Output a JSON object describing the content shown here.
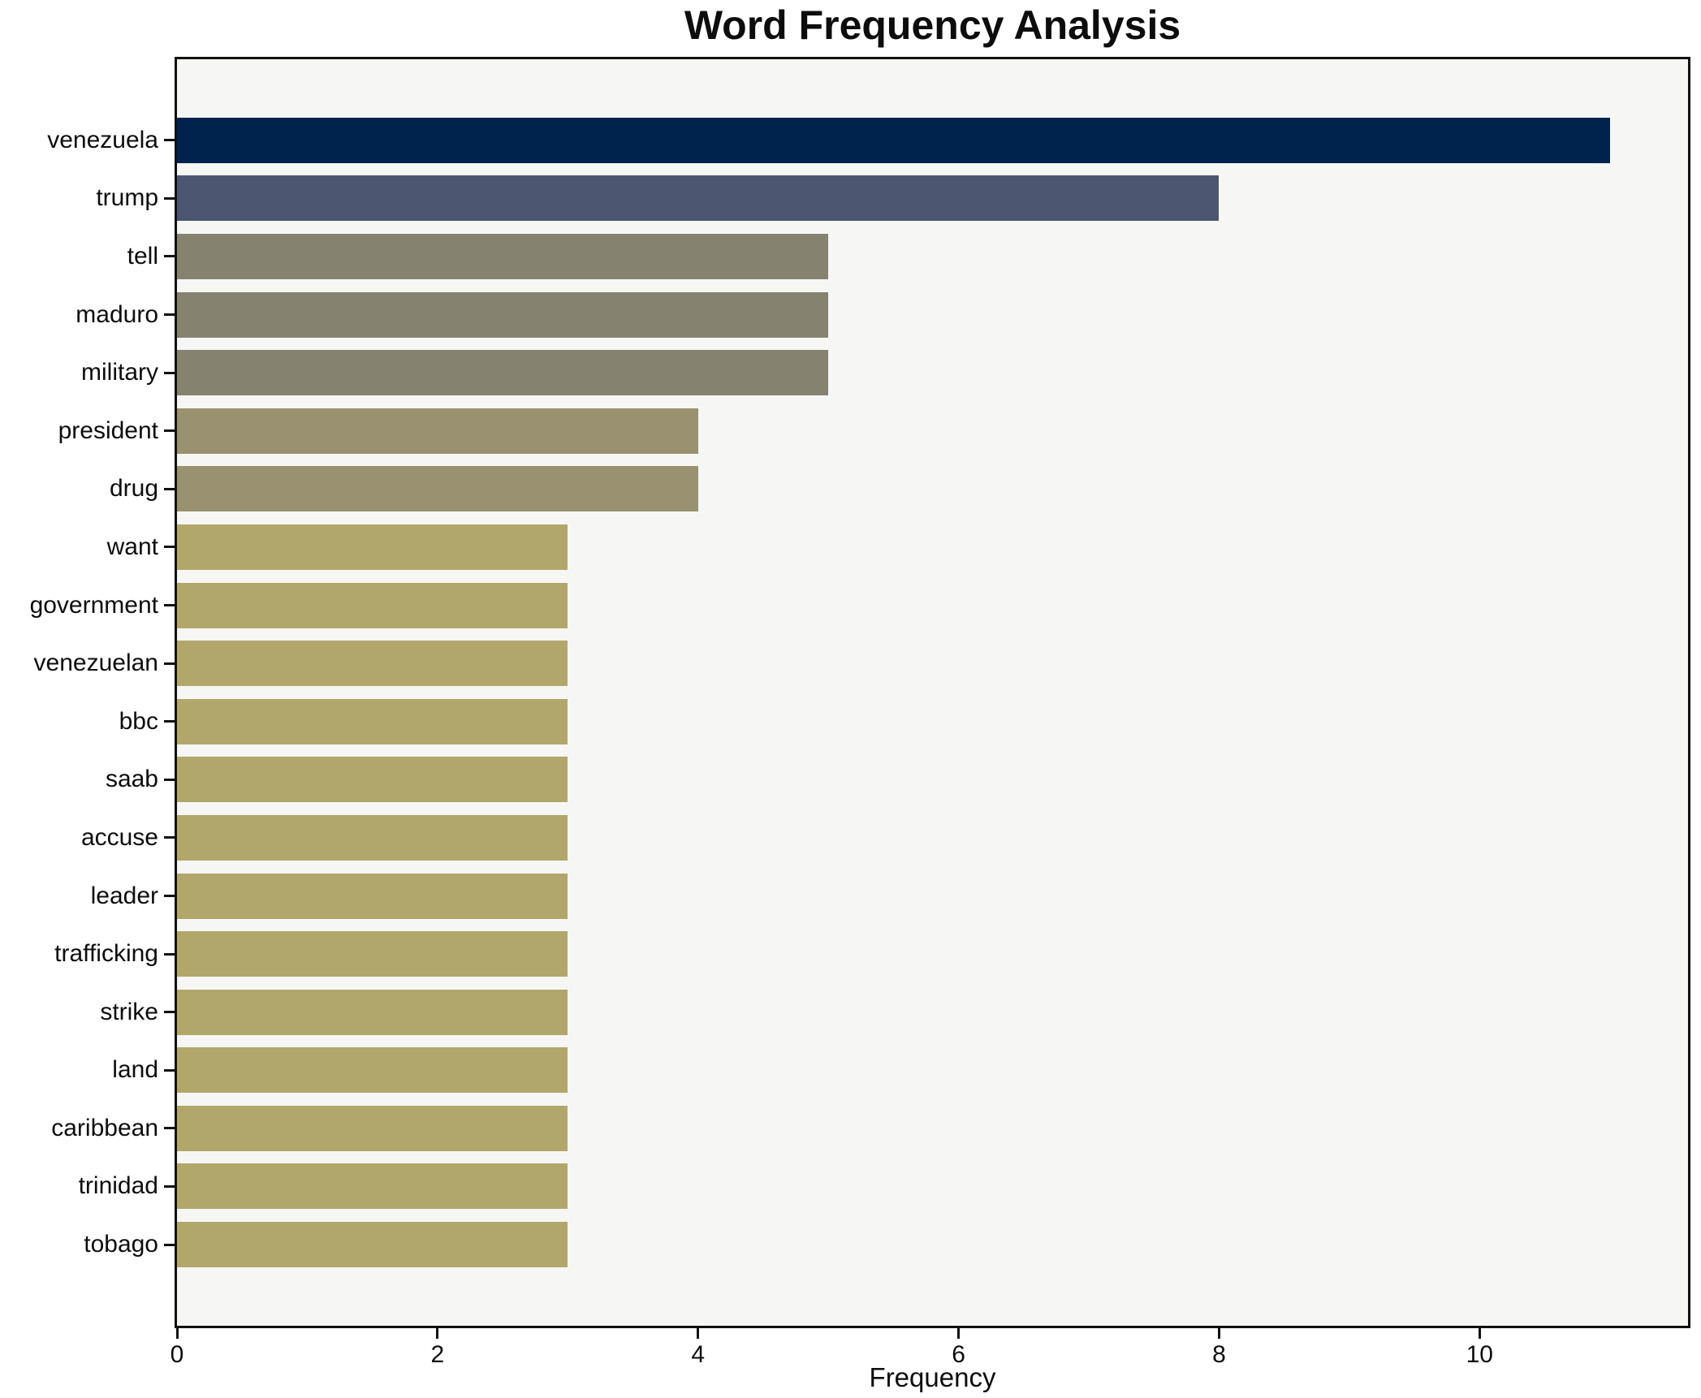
{
  "chart_data": {
    "type": "bar",
    "orientation": "horizontal",
    "title": "Word Frequency Analysis",
    "xlabel": "Frequency",
    "ylabel": "",
    "categories": [
      "venezuela",
      "trump",
      "tell",
      "maduro",
      "military",
      "president",
      "drug",
      "want",
      "government",
      "venezuelan",
      "bbc",
      "saab",
      "accuse",
      "leader",
      "trafficking",
      "strike",
      "land",
      "caribbean",
      "trinidad",
      "tobago"
    ],
    "values": [
      11,
      8,
      5,
      5,
      5,
      4,
      4,
      3,
      3,
      3,
      3,
      3,
      3,
      3,
      3,
      3,
      3,
      3,
      3,
      3
    ],
    "bar_colors": [
      "#00234e",
      "#4c5670",
      "#858270",
      "#858270",
      "#858270",
      "#9a9170",
      "#9a9170",
      "#b2a76b",
      "#b2a76b",
      "#b2a76b",
      "#b2a76b",
      "#b2a76b",
      "#b2a76b",
      "#b2a76b",
      "#b2a76b",
      "#b2a76b",
      "#b2a76b",
      "#b2a76b",
      "#b2a76b",
      "#b2a76b"
    ],
    "xticks": [
      0,
      2,
      4,
      6,
      8,
      10
    ],
    "xlim": [
      0,
      11.6
    ],
    "grid": false,
    "legend": null,
    "colors": {
      "figure_background": "#ffffff",
      "plot_background": "#f6f6f4",
      "spine": "#111111",
      "text": "#0d0d0d"
    }
  }
}
